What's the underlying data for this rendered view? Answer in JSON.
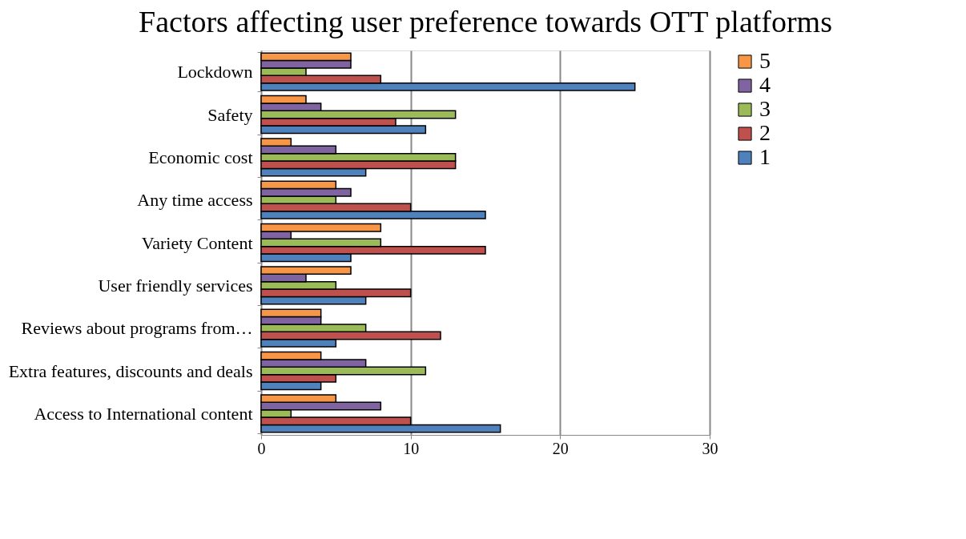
{
  "chart_data": {
    "type": "bar",
    "orientation": "horizontal",
    "title": "Factors affecting user preference towards OTT platforms",
    "categories": [
      "Lockdown",
      "Safety",
      "Economic cost",
      "Any time access",
      "Variety Content",
      "User friendly services",
      "Reviews about programs from…",
      "Extra features, discounts and deals",
      "Access to International content"
    ],
    "series": [
      {
        "name": "1",
        "color": "#4f81bd",
        "values": [
          25,
          11,
          7,
          15,
          6,
          7,
          5,
          4,
          16
        ]
      },
      {
        "name": "2",
        "color": "#c0504d",
        "values": [
          8,
          9,
          13,
          10,
          15,
          10,
          12,
          5,
          10
        ]
      },
      {
        "name": "3",
        "color": "#9bbb59",
        "values": [
          3,
          13,
          13,
          5,
          8,
          5,
          7,
          11,
          2
        ]
      },
      {
        "name": "4",
        "color": "#8064a2",
        "values": [
          6,
          4,
          5,
          6,
          2,
          3,
          4,
          7,
          8
        ]
      },
      {
        "name": "5",
        "color": "#f79646",
        "values": [
          6,
          3,
          2,
          5,
          8,
          6,
          4,
          4,
          5
        ]
      }
    ],
    "xlim": [
      0,
      30
    ],
    "xticks": [
      0,
      10,
      20,
      30
    ],
    "grid": "x",
    "legend": "right"
  }
}
